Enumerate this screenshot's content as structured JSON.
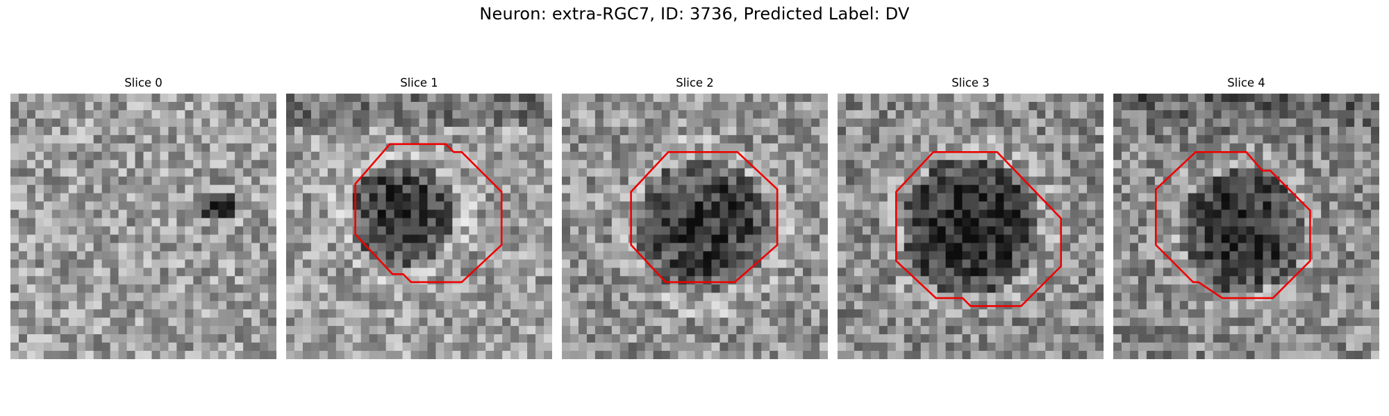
{
  "figure": {
    "title": "Neuron: extra-RGC7, ID: 3736, Predicted Label: DV"
  },
  "colors": {
    "contour": "#ee0000",
    "background": "#ffffff"
  },
  "panels": [
    {
      "title": "Slice 0",
      "has_contour": false,
      "mean_gray": 0.62,
      "dark_blob": 0.0
    },
    {
      "title": "Slice 1",
      "has_contour": true,
      "mean_gray": 0.62,
      "dark_blob": 0.45
    },
    {
      "title": "Slice 2",
      "has_contour": true,
      "mean_gray": 0.58,
      "dark_blob": 0.4
    },
    {
      "title": "Slice 3",
      "has_contour": true,
      "mean_gray": 0.55,
      "dark_blob": 0.42
    },
    {
      "title": "Slice 4",
      "has_contour": true,
      "mean_gray": 0.55,
      "dark_blob": 0.38
    }
  ]
}
